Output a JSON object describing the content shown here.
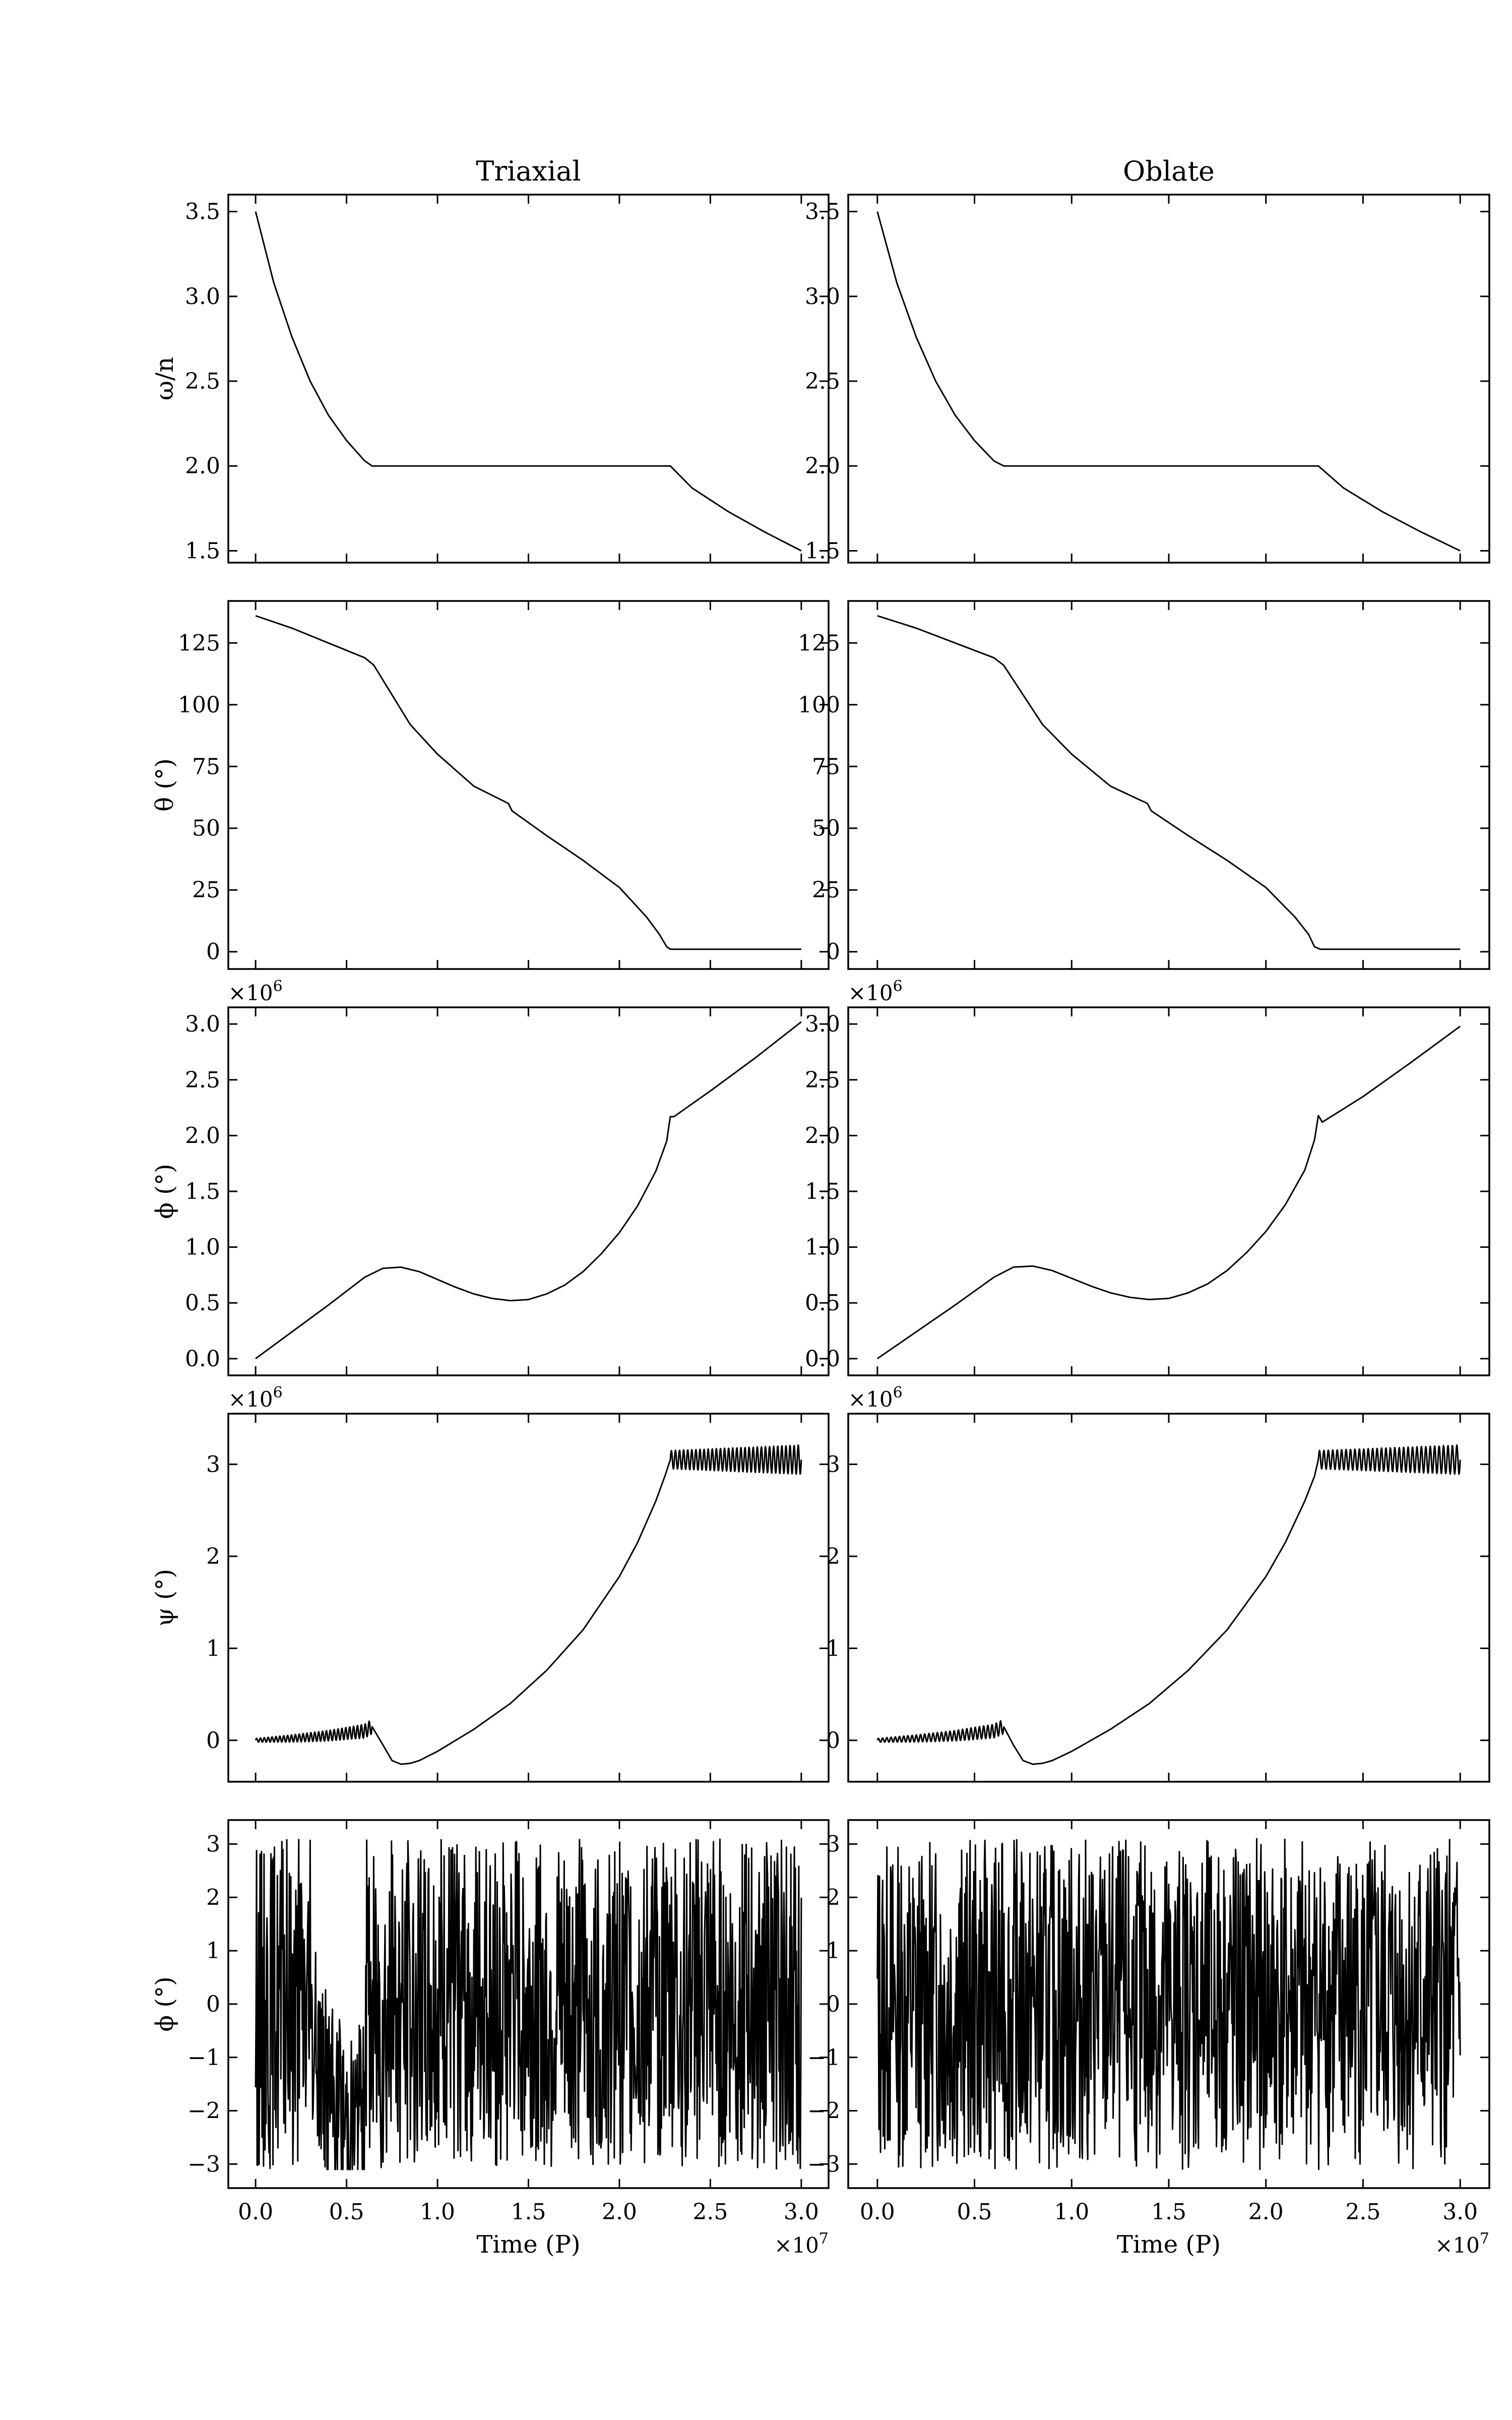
{
  "columns": [
    "Triaxial",
    "Oblate"
  ],
  "x_axis": {
    "label": "Time (P)",
    "ticks": [
      "0.0",
      "0.5",
      "1.0",
      "1.5",
      "2.0",
      "2.5",
      "3.0"
    ],
    "tick_values": [
      0,
      0.5,
      1.0,
      1.5,
      2.0,
      2.5,
      3.0
    ],
    "multiplier": "×10",
    "multiplier_exp": "7",
    "xlim": [
      -0.15,
      3.15
    ]
  },
  "rows": [
    {
      "ylabel": "ω/n",
      "ylim": [
        1.43,
        3.6
      ],
      "ticks": [
        "1.5",
        "2.0",
        "2.5",
        "3.0",
        "3.5"
      ],
      "tick_values": [
        1.5,
        2.0,
        2.5,
        3.0,
        3.5
      ],
      "multiplier": "",
      "multiplier_exp": ""
    },
    {
      "ylabel": "θ (°)",
      "ylim": [
        -7,
        142
      ],
      "ticks": [
        "0",
        "25",
        "50",
        "75",
        "100",
        "125"
      ],
      "tick_values": [
        0,
        25,
        50,
        75,
        100,
        125
      ],
      "multiplier": "",
      "multiplier_exp": ""
    },
    {
      "ylabel": "ϕ (°)",
      "ylim": [
        -0.15,
        3.15
      ],
      "ticks": [
        "0.0",
        "0.5",
        "1.0",
        "1.5",
        "2.0",
        "2.5",
        "3.0"
      ],
      "tick_values": [
        0,
        0.5,
        1.0,
        1.5,
        2.0,
        2.5,
        3.0
      ],
      "multiplier": "×10",
      "multiplier_exp": "6"
    },
    {
      "ylabel": "ψ (°)",
      "ylim": [
        -0.45,
        3.55
      ],
      "ticks": [
        "0",
        "1",
        "2",
        "3"
      ],
      "tick_values": [
        0,
        1,
        2,
        3
      ],
      "multiplier": "×10",
      "multiplier_exp": "6"
    },
    {
      "ylabel": "ϕ (°)",
      "ylim": [
        -3.45,
        3.45
      ],
      "ticks": [
        "−3",
        "−2",
        "−1",
        "0",
        "1",
        "2",
        "3"
      ],
      "tick_values": [
        -3,
        -2,
        -1,
        0,
        1,
        2,
        3
      ],
      "multiplier": "",
      "multiplier_exp": ""
    }
  ],
  "chart_data": [
    {
      "type": "line",
      "panel": "Triaxial, row 1",
      "xlabel": "",
      "ylabel": "ω/n",
      "x_units": "×10^7 P",
      "xlim": [
        -0.15,
        3.15
      ],
      "ylim": [
        1.43,
        3.6
      ],
      "x": [
        0.0,
        0.1,
        0.2,
        0.3,
        0.4,
        0.5,
        0.6,
        0.64,
        1.0,
        1.5,
        2.0,
        2.28,
        2.4,
        2.6,
        2.8,
        3.0
      ],
      "y": [
        3.5,
        3.08,
        2.76,
        2.5,
        2.3,
        2.15,
        2.03,
        2.0,
        2.0,
        2.0,
        2.0,
        2.0,
        1.87,
        1.73,
        1.61,
        1.5
      ]
    },
    {
      "type": "line",
      "panel": "Oblate, row 1",
      "xlabel": "",
      "ylabel": "ω/n",
      "x_units": "×10^7 P",
      "xlim": [
        -0.15,
        3.15
      ],
      "ylim": [
        1.43,
        3.6
      ],
      "x": [
        0.0,
        0.1,
        0.2,
        0.3,
        0.4,
        0.5,
        0.6,
        0.65,
        1.0,
        1.5,
        2.0,
        2.27,
        2.4,
        2.6,
        2.8,
        3.0
      ],
      "y": [
        3.5,
        3.08,
        2.76,
        2.5,
        2.3,
        2.15,
        2.03,
        2.0,
        2.0,
        2.0,
        2.0,
        2.0,
        1.87,
        1.73,
        1.61,
        1.5
      ]
    },
    {
      "type": "line",
      "panel": "Triaxial, row 2",
      "xlabel": "",
      "ylabel": "θ (°)",
      "x_units": "×10^7 P",
      "xlim": [
        -0.15,
        3.15
      ],
      "ylim": [
        -7,
        142
      ],
      "x": [
        0.0,
        0.2,
        0.4,
        0.6,
        0.65,
        0.75,
        0.85,
        1.0,
        1.2,
        1.39,
        1.41,
        1.6,
        1.8,
        2.0,
        2.15,
        2.22,
        2.26,
        2.28,
        2.32,
        2.6,
        3.0
      ],
      "y": [
        136,
        131,
        125,
        119,
        116,
        104,
        92,
        80,
        67,
        60,
        57,
        47,
        37,
        26,
        14,
        7,
        2,
        1,
        1,
        1,
        1
      ]
    },
    {
      "type": "line",
      "panel": "Oblate, row 2",
      "xlabel": "",
      "ylabel": "θ (°)",
      "x_units": "×10^7 P",
      "xlim": [
        -0.15,
        3.15
      ],
      "ylim": [
        -7,
        142
      ],
      "x": [
        0.0,
        0.2,
        0.4,
        0.6,
        0.65,
        0.75,
        0.85,
        1.0,
        1.2,
        1.39,
        1.41,
        1.6,
        1.8,
        2.0,
        2.15,
        2.22,
        2.25,
        2.28,
        2.32,
        2.6,
        3.0
      ],
      "y": [
        136,
        131,
        125,
        119,
        116,
        104,
        92,
        80,
        67,
        60,
        57,
        47,
        37,
        26,
        14,
        7,
        2,
        1,
        1,
        1,
        1
      ]
    },
    {
      "type": "line",
      "panel": "Triaxial, row 3",
      "xlabel": "",
      "ylabel": "ϕ (°)",
      "x_units": "×10^7 P",
      "y_units": "×10^6 °",
      "xlim": [
        -0.15,
        3.15
      ],
      "ylim": [
        -0.15,
        3.15
      ],
      "x": [
        0.0,
        0.2,
        0.4,
        0.6,
        0.7,
        0.8,
        0.9,
        1.0,
        1.1,
        1.2,
        1.3,
        1.4,
        1.5,
        1.6,
        1.7,
        1.8,
        1.9,
        2.0,
        2.1,
        2.2,
        2.26,
        2.28,
        2.3,
        2.5,
        2.75,
        3.0
      ],
      "y": [
        0.0,
        0.24,
        0.48,
        0.73,
        0.81,
        0.82,
        0.78,
        0.71,
        0.64,
        0.58,
        0.54,
        0.52,
        0.53,
        0.58,
        0.66,
        0.78,
        0.94,
        1.13,
        1.37,
        1.68,
        1.95,
        2.17,
        2.17,
        2.4,
        2.7,
        3.02
      ]
    },
    {
      "type": "line",
      "panel": "Oblate, row 3",
      "xlabel": "",
      "ylabel": "ϕ (°)",
      "x_units": "×10^7 P",
      "y_units": "×10^6 °",
      "xlim": [
        -0.15,
        3.15
      ],
      "ylim": [
        -0.15,
        3.15
      ],
      "x": [
        0.0,
        0.2,
        0.4,
        0.6,
        0.7,
        0.8,
        0.9,
        1.0,
        1.1,
        1.2,
        1.3,
        1.4,
        1.5,
        1.6,
        1.7,
        1.8,
        1.9,
        2.0,
        2.1,
        2.2,
        2.25,
        2.27,
        2.29,
        2.5,
        2.75,
        3.0
      ],
      "y": [
        0.0,
        0.24,
        0.48,
        0.73,
        0.82,
        0.83,
        0.79,
        0.72,
        0.65,
        0.59,
        0.55,
        0.53,
        0.54,
        0.59,
        0.67,
        0.79,
        0.95,
        1.14,
        1.38,
        1.69,
        1.96,
        2.18,
        2.12,
        2.35,
        2.66,
        2.98
      ]
    },
    {
      "type": "line",
      "panel": "Triaxial, row 4",
      "xlabel": "",
      "ylabel": "ψ (°)",
      "x_units": "×10^7 P",
      "y_units": "×10^6 °",
      "xlim": [
        -0.15,
        3.15
      ],
      "ylim": [
        -0.45,
        3.55
      ],
      "oscillation_bands": [
        {
          "x_start": 0.0,
          "x_end": 0.64,
          "amplitude_start": 0.02,
          "amplitude_end": 0.08,
          "cycles": 30
        },
        {
          "x_start": 2.28,
          "x_end": 3.0,
          "amplitude_start": 0.1,
          "amplitude_end": 0.16,
          "cycles": 32
        }
      ],
      "x": [
        0.0,
        0.2,
        0.4,
        0.6,
        0.64,
        0.7,
        0.75,
        0.8,
        0.85,
        0.9,
        1.0,
        1.2,
        1.4,
        1.6,
        1.8,
        2.0,
        2.1,
        2.2,
        2.25,
        2.28,
        2.5,
        2.75,
        3.0
      ],
      "y": [
        0.0,
        0.02,
        0.05,
        0.1,
        0.15,
        -0.05,
        -0.22,
        -0.26,
        -0.25,
        -0.22,
        -0.12,
        0.12,
        0.4,
        0.76,
        1.2,
        1.78,
        2.15,
        2.6,
        2.87,
        3.05,
        3.05,
        3.05,
        3.05
      ]
    },
    {
      "type": "line",
      "panel": "Oblate, row 4",
      "xlabel": "",
      "ylabel": "ψ (°)",
      "x_units": "×10^7 P",
      "y_units": "×10^6 °",
      "xlim": [
        -0.15,
        3.15
      ],
      "ylim": [
        -0.45,
        3.55
      ],
      "oscillation_bands": [
        {
          "x_start": 0.0,
          "x_end": 0.65,
          "amplitude_start": 0.02,
          "amplitude_end": 0.08,
          "cycles": 30
        },
        {
          "x_start": 2.27,
          "x_end": 3.0,
          "amplitude_start": 0.1,
          "amplitude_end": 0.16,
          "cycles": 32
        }
      ],
      "x": [
        0.0,
        0.2,
        0.4,
        0.6,
        0.65,
        0.7,
        0.75,
        0.8,
        0.85,
        0.9,
        1.0,
        1.2,
        1.4,
        1.6,
        1.8,
        2.0,
        2.1,
        2.2,
        2.25,
        2.27,
        2.5,
        2.75,
        3.0
      ],
      "y": [
        0.0,
        0.02,
        0.05,
        0.1,
        0.15,
        -0.05,
        -0.22,
        -0.26,
        -0.25,
        -0.22,
        -0.12,
        0.12,
        0.4,
        0.76,
        1.2,
        1.78,
        2.15,
        2.6,
        2.87,
        3.05,
        3.05,
        3.05,
        3.05
      ]
    },
    {
      "type": "line",
      "panel": "Triaxial, row 5",
      "xlabel": "Time (P)",
      "ylabel": "ϕ (°)",
      "x_units": "×10^7 P",
      "xlim": [
        -0.15,
        3.15
      ],
      "ylim": [
        -3.45,
        3.45
      ],
      "description_values": {
        "x_range": [
          0.0,
          3.0
        ],
        "y_range": [
          -3.1,
          3.1
        ],
        "pattern": "wrapped angle, rapid oscillation spanning −π to π, denser near x≈0.45"
      },
      "x": [
        0.0,
        0.05,
        0.1,
        0.15,
        0.2,
        0.25,
        0.3,
        0.35,
        0.4,
        0.45,
        0.5,
        0.55,
        0.6,
        0.7,
        0.8,
        0.9,
        1.0,
        1.2,
        1.4,
        1.6,
        1.8,
        2.0,
        2.2,
        2.4,
        2.6,
        2.8,
        3.0
      ],
      "y": [
        1.5,
        -2.9,
        2.4,
        -2.1,
        3.0,
        -2.7,
        1.9,
        -2.4,
        2.6,
        -2.9,
        2.2,
        -3.0,
        2.9,
        -2.6,
        3.0,
        -2.8,
        2.5,
        -3.0,
        2.9,
        -2.7,
        3.1,
        -2.9,
        2.8,
        -3.0,
        2.7,
        -2.9,
        3.0
      ]
    },
    {
      "type": "line",
      "panel": "Oblate, row 5",
      "xlabel": "Time (P)",
      "ylabel": "ϕ (°)",
      "x_units": "×10^7 P",
      "xlim": [
        -0.15,
        3.15
      ],
      "ylim": [
        -3.45,
        3.45
      ],
      "description_values": {
        "x_range": [
          0.0,
          3.0
        ],
        "y_range": [
          -3.1,
          3.1
        ],
        "pattern": "wrapped angle, rapid oscillation spanning −π to π"
      },
      "x": [
        0.0,
        0.05,
        0.1,
        0.15,
        0.2,
        0.25,
        0.3,
        0.35,
        0.4,
        0.45,
        0.5,
        0.55,
        0.6,
        0.7,
        0.8,
        0.9,
        1.0,
        1.2,
        1.4,
        1.6,
        1.8,
        2.0,
        2.2,
        2.4,
        2.6,
        2.8,
        3.0
      ],
      "y": [
        0.2,
        -2.7,
        2.5,
        -2.4,
        2.9,
        -3.0,
        2.3,
        -2.6,
        2.8,
        -2.9,
        2.6,
        -3.0,
        2.9,
        -2.8,
        3.0,
        -2.9,
        2.7,
        -3.0,
        2.9,
        -2.8,
        3.0,
        -2.9,
        2.8,
        -3.0,
        2.9,
        -2.9,
        3.0
      ]
    }
  ]
}
